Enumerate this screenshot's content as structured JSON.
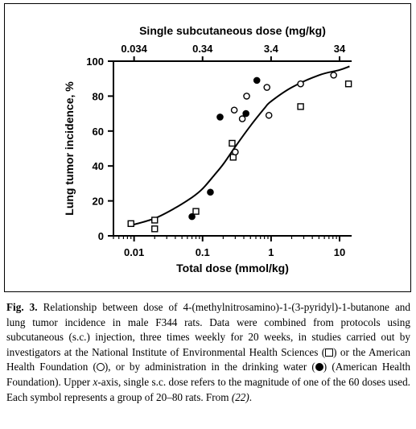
{
  "chart_data": {
    "type": "scatter",
    "top_axis_title": "Single subcutaneous dose (mg/kg)",
    "top_ticks": [
      {
        "label": "0.034",
        "x": 0.01
      },
      {
        "label": "0.34",
        "x": 0.1
      },
      {
        "label": "3.4",
        "x": 1
      },
      {
        "label": "34",
        "x": 10
      }
    ],
    "xlabel": "Total dose (mmol/kg)",
    "ylabel": "Lung tumor incidence, %",
    "x_scale": "log",
    "xlim": [
      0.005,
      15
    ],
    "ylim": [
      0,
      100
    ],
    "x_ticks": [
      {
        "label": "0.01",
        "x": 0.01
      },
      {
        "label": "0.1",
        "x": 0.1
      },
      {
        "label": "1",
        "x": 1
      },
      {
        "label": "10",
        "x": 10
      }
    ],
    "y_ticks": [
      {
        "label": "0",
        "y": 0
      },
      {
        "label": "20",
        "y": 20
      },
      {
        "label": "40",
        "y": 40
      },
      {
        "label": "60",
        "y": 60
      },
      {
        "label": "80",
        "y": 80
      },
      {
        "label": "100",
        "y": 100
      }
    ],
    "grid": false,
    "series": [
      {
        "name": "National Institute of Environmental Health Sciences",
        "marker": "open-square",
        "points": [
          [
            0.009,
            7
          ],
          [
            0.02,
            9
          ],
          [
            0.02,
            4
          ],
          [
            0.08,
            14
          ],
          [
            0.27,
            53
          ],
          [
            0.28,
            45
          ],
          [
            2.7,
            74
          ],
          [
            13.5,
            87
          ]
        ]
      },
      {
        "name": "American Health Foundation (s.c.)",
        "marker": "open-circle",
        "points": [
          [
            0.29,
            72
          ],
          [
            0.3,
            48
          ],
          [
            0.38,
            67
          ],
          [
            0.44,
            80
          ],
          [
            0.87,
            85
          ],
          [
            0.93,
            69
          ],
          [
            2.7,
            87
          ],
          [
            8.2,
            92
          ]
        ]
      },
      {
        "name": "American Health Foundation (drinking water)",
        "marker": "filled-circle",
        "points": [
          [
            0.07,
            11
          ],
          [
            0.13,
            25
          ],
          [
            0.18,
            68
          ],
          [
            0.43,
            70
          ],
          [
            0.62,
            89
          ]
        ]
      }
    ],
    "fit_curve": [
      [
        0.009,
        6
      ],
      [
        0.02,
        10
      ],
      [
        0.04,
        16
      ],
      [
        0.07,
        22
      ],
      [
        0.1,
        27
      ],
      [
        0.15,
        35
      ],
      [
        0.2,
        41
      ],
      [
        0.3,
        51
      ],
      [
        0.5,
        63
      ],
      [
        0.8,
        73
      ],
      [
        1,
        77
      ],
      [
        2,
        85
      ],
      [
        5,
        92
      ],
      [
        10,
        95
      ],
      [
        14,
        97
      ]
    ]
  },
  "caption": {
    "label": "Fig. 3.",
    "part1": " Relationship between dose of 4-(methylnitrosamino)-1-(3-pyridyl)-1-butanone and lung tumor incidence in male F344 rats. Data were combined from protocols using subcutaneous (s.c.) injection, three times weekly for 20 weeks, in studies carried out by investigators at the National Institute of Environmental Health Sciences (",
    "part2": ") or the American Health Foundation (",
    "part3": "), or by administration in the drinking water (",
    "part4": ") (American Health Foundation). Upper ",
    "xvar": "x",
    "part5": "-axis, single s.c. dose refers to the magnitude of one of the 60 doses used. Each symbol represents a group of 20–80 rats. From ",
    "ref": "(22)",
    "part6": "."
  }
}
